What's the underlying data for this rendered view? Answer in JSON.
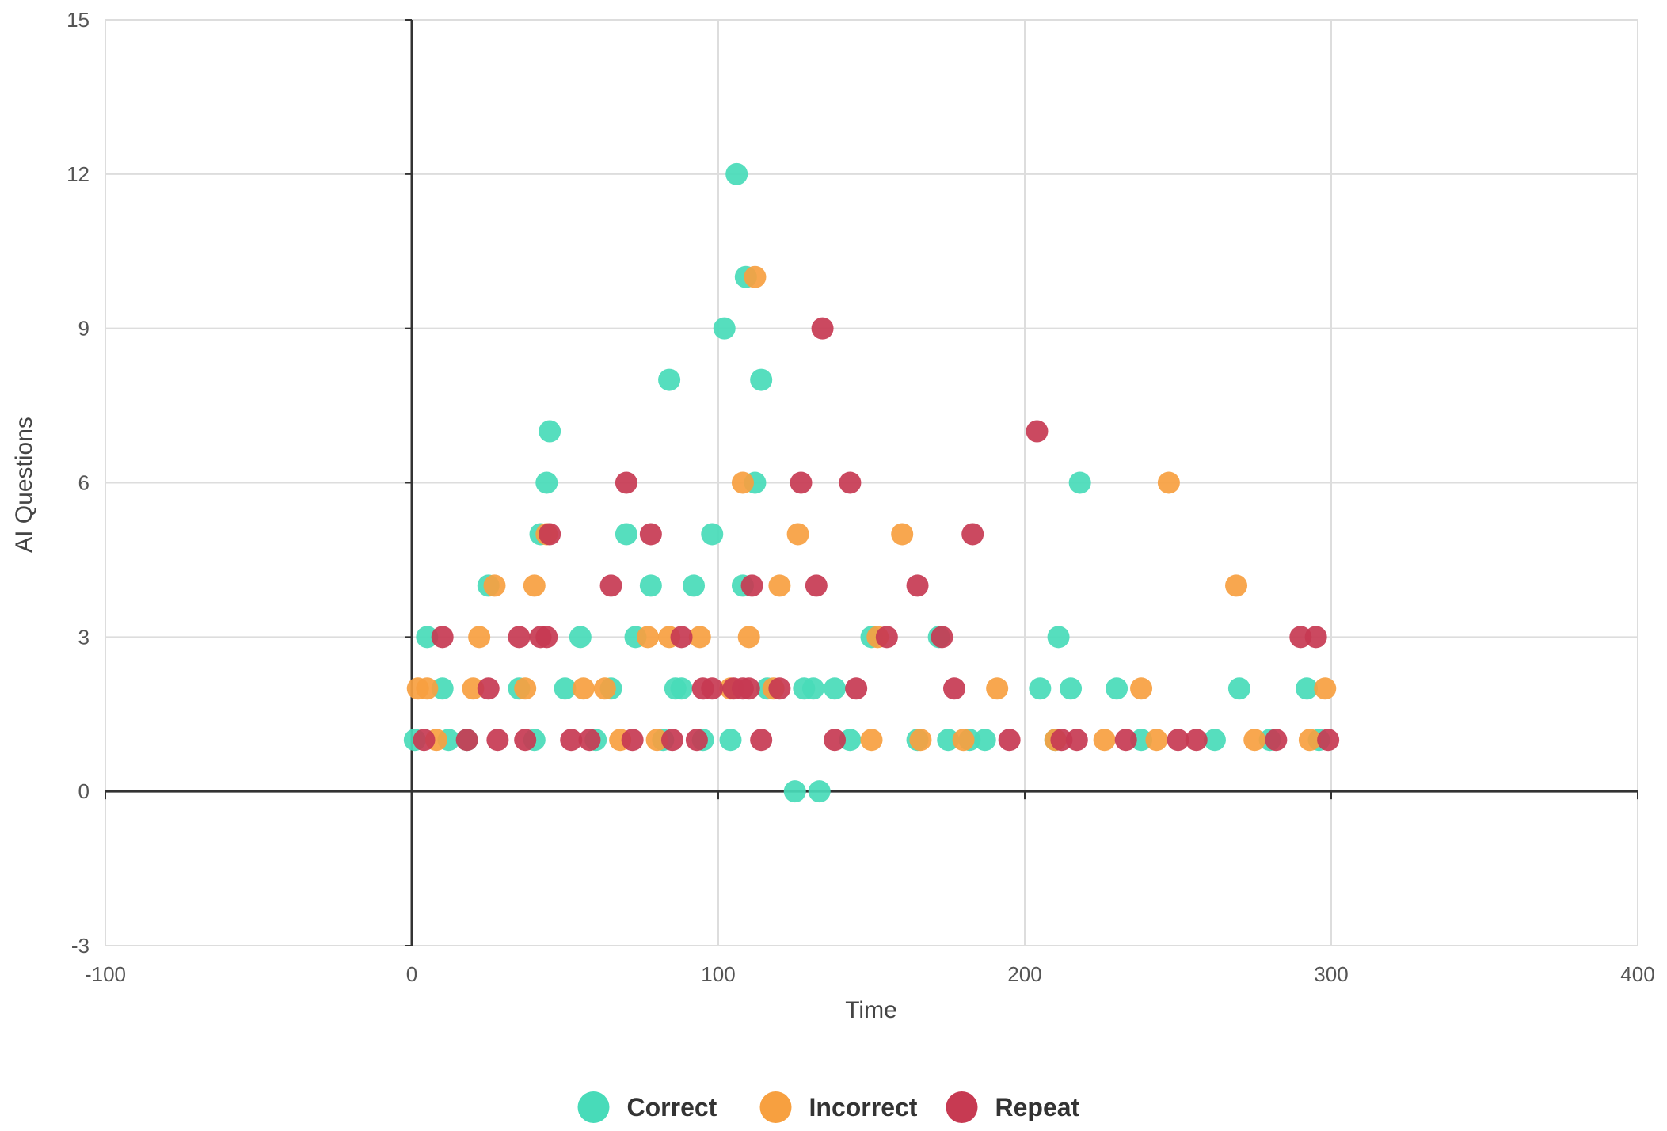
{
  "chart_data": {
    "type": "scatter",
    "xlabel": "Time",
    "ylabel": "AI Questions",
    "xlim": [
      -100,
      400
    ],
    "ylim": [
      -3,
      15
    ],
    "x_ticks": [
      "-100",
      "0",
      "100",
      "200",
      "300",
      "400"
    ],
    "y_ticks": [
      "-3",
      "0",
      "3",
      "6",
      "9",
      "12",
      "15"
    ],
    "grid": true,
    "legend_position": "bottom",
    "series": [
      {
        "name": "Correct",
        "color": "#48dbb9",
        "points": [
          [
            1,
            1
          ],
          [
            5,
            3
          ],
          [
            10,
            2
          ],
          [
            12,
            1
          ],
          [
            18,
            1
          ],
          [
            25,
            4
          ],
          [
            35,
            2
          ],
          [
            40,
            1
          ],
          [
            42,
            5
          ],
          [
            44,
            6
          ],
          [
            45,
            7
          ],
          [
            50,
            2
          ],
          [
            55,
            3
          ],
          [
            60,
            1
          ],
          [
            65,
            2
          ],
          [
            70,
            5
          ],
          [
            73,
            3
          ],
          [
            78,
            4
          ],
          [
            82,
            1
          ],
          [
            84,
            8
          ],
          [
            86,
            2
          ],
          [
            88,
            2
          ],
          [
            92,
            4
          ],
          [
            95,
            1
          ],
          [
            98,
            5
          ],
          [
            102,
            9
          ],
          [
            104,
            1
          ],
          [
            106,
            12
          ],
          [
            108,
            4
          ],
          [
            109,
            10
          ],
          [
            112,
            6
          ],
          [
            114,
            8
          ],
          [
            116,
            2
          ],
          [
            125,
            0
          ],
          [
            128,
            2
          ],
          [
            131,
            2
          ],
          [
            133,
            0
          ],
          [
            138,
            2
          ],
          [
            143,
            1
          ],
          [
            150,
            3
          ],
          [
            165,
            1
          ],
          [
            172,
            3
          ],
          [
            175,
            1
          ],
          [
            182,
            1
          ],
          [
            187,
            1
          ],
          [
            205,
            2
          ],
          [
            210,
            1
          ],
          [
            211,
            3
          ],
          [
            215,
            2
          ],
          [
            218,
            6
          ],
          [
            230,
            2
          ],
          [
            238,
            1
          ],
          [
            262,
            1
          ],
          [
            270,
            2
          ],
          [
            280,
            1
          ],
          [
            292,
            2
          ],
          [
            296,
            1
          ]
        ]
      },
      {
        "name": "Incorrect",
        "color": "#f7a040",
        "points": [
          [
            2,
            2
          ],
          [
            5,
            2
          ],
          [
            8,
            1
          ],
          [
            20,
            2
          ],
          [
            22,
            3
          ],
          [
            27,
            4
          ],
          [
            37,
            2
          ],
          [
            40,
            4
          ],
          [
            44,
            5
          ],
          [
            56,
            2
          ],
          [
            63,
            2
          ],
          [
            68,
            1
          ],
          [
            77,
            3
          ],
          [
            80,
            1
          ],
          [
            84,
            3
          ],
          [
            94,
            3
          ],
          [
            104,
            2
          ],
          [
            108,
            6
          ],
          [
            110,
            3
          ],
          [
            112,
            10
          ],
          [
            118,
            2
          ],
          [
            120,
            4
          ],
          [
            126,
            5
          ],
          [
            150,
            1
          ],
          [
            152,
            3
          ],
          [
            160,
            5
          ],
          [
            166,
            1
          ],
          [
            180,
            1
          ],
          [
            191,
            2
          ],
          [
            210,
            1
          ],
          [
            226,
            1
          ],
          [
            238,
            2
          ],
          [
            243,
            1
          ],
          [
            247,
            6
          ],
          [
            269,
            4
          ],
          [
            275,
            1
          ],
          [
            293,
            1
          ],
          [
            298,
            2
          ]
        ]
      },
      {
        "name": "Repeat",
        "color": "#c73a52",
        "points": [
          [
            4,
            1
          ],
          [
            10,
            3
          ],
          [
            18,
            1
          ],
          [
            25,
            2
          ],
          [
            28,
            1
          ],
          [
            35,
            3
          ],
          [
            37,
            1
          ],
          [
            42,
            3
          ],
          [
            44,
            3
          ],
          [
            45,
            5
          ],
          [
            52,
            1
          ],
          [
            58,
            1
          ],
          [
            65,
            4
          ],
          [
            70,
            6
          ],
          [
            72,
            1
          ],
          [
            78,
            5
          ],
          [
            85,
            1
          ],
          [
            88,
            3
          ],
          [
            93,
            1
          ],
          [
            95,
            2
          ],
          [
            98,
            2
          ],
          [
            105,
            2
          ],
          [
            108,
            2
          ],
          [
            110,
            2
          ],
          [
            111,
            4
          ],
          [
            114,
            1
          ],
          [
            120,
            2
          ],
          [
            127,
            6
          ],
          [
            132,
            4
          ],
          [
            134,
            9
          ],
          [
            138,
            1
          ],
          [
            143,
            6
          ],
          [
            145,
            2
          ],
          [
            155,
            3
          ],
          [
            165,
            4
          ],
          [
            173,
            3
          ],
          [
            177,
            2
          ],
          [
            183,
            5
          ],
          [
            195,
            1
          ],
          [
            204,
            7
          ],
          [
            212,
            1
          ],
          [
            217,
            1
          ],
          [
            233,
            1
          ],
          [
            250,
            1
          ],
          [
            256,
            1
          ],
          [
            282,
            1
          ],
          [
            290,
            3
          ],
          [
            295,
            3
          ],
          [
            299,
            1
          ]
        ]
      }
    ]
  }
}
